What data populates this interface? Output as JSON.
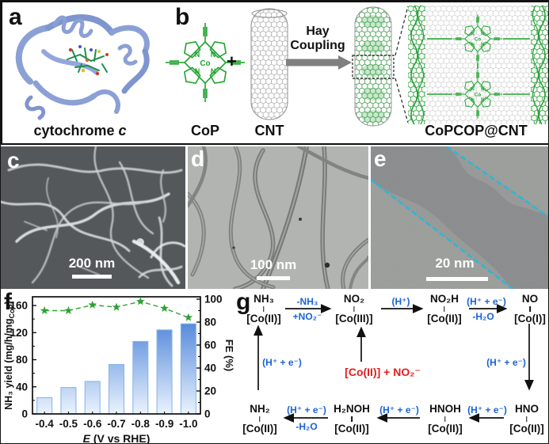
{
  "figure": {
    "panel_a": {
      "label": "a",
      "caption_main": "cytochrome ",
      "caption_italic": "c"
    },
    "panel_b": {
      "label": "b",
      "cop_caption": "CoP",
      "plus_sign": "+",
      "cnt_caption": "CNT",
      "arrow_text_line1": "Hay",
      "arrow_text_line2": "Coupling",
      "product_caption": "CoPCOP@CNT",
      "metal_symbol": "Co",
      "nitrogen_symbol": "N"
    },
    "panel_c": {
      "label": "c",
      "scale_bar_text": "200 nm"
    },
    "panel_d": {
      "label": "d",
      "scale_bar_text": "100 nm"
    },
    "panel_e": {
      "label": "e",
      "scale_bar_text": "20 nm"
    },
    "panel_f": {
      "label": "f"
    },
    "panel_g": {
      "label": "g"
    }
  },
  "chart_data": {
    "type": "bar",
    "categories": [
      "-0.4",
      "-0.5",
      "-0.6",
      "-0.7",
      "-0.8",
      "-0.9",
      "-1.0"
    ],
    "series": [
      {
        "name": "NH3 yield",
        "type": "bar",
        "axis": "left",
        "values": [
          24,
          39,
          48,
          73,
          107,
          124,
          133
        ]
      },
      {
        "name": "FE",
        "type": "line-star",
        "axis": "right",
        "style": "dashed",
        "values": [
          90,
          90,
          95,
          93,
          98,
          92,
          84
        ]
      }
    ],
    "left_axis": {
      "label_main": "NH₃ yield (mg/h/mg",
      "label_sub": "CoP",
      "label_end": ")",
      "ticks": [
        0,
        40,
        80,
        120,
        160
      ],
      "range": [
        0,
        173
      ]
    },
    "right_axis": {
      "label": "FE (%)",
      "ticks": [
        0,
        20,
        40,
        60,
        80,
        100
      ],
      "range": [
        0,
        102
      ]
    },
    "x_axis": {
      "label_italic": "E",
      "label_rest": " (V vs RHE)"
    },
    "grid": false,
    "colors": {
      "bar_top": "#2b6cd1",
      "bar_bottom": "#eaf3fd",
      "bar_edge": "#86b2e8",
      "star_line": "#2da233"
    }
  },
  "mechanism": {
    "top_nodes": [
      {
        "formula": "NH₃",
        "complex": "[Co(II)]"
      },
      {
        "formula": "NO₂",
        "complex": "[Co(III)]"
      },
      {
        "formula": "NO₂H",
        "complex": "[Co(II)]"
      },
      {
        "formula": "NO",
        "complex": "[Co(I)]"
      }
    ],
    "bottom_nodes": [
      {
        "formula": "NH₂",
        "complex": "[Co(II)]"
      },
      {
        "formula": "H₂NOH",
        "complex": "[Co(II)]"
      },
      {
        "formula": "HNOH",
        "complex": "[Co(II)]"
      },
      {
        "formula": "HNO",
        "complex": "[Co(II)]"
      }
    ],
    "labels": {
      "t1_above": "-NH₃",
      "t1_below": "+NO₂⁻",
      "t2_above": "(H⁺)",
      "t3_above": "(H⁺ + e⁻)",
      "t3_below": "-H₂O",
      "left_vertical": "(H⁺ + e⁻)",
      "right_vertical": "(H⁺ + e⁻)",
      "b1": "(H⁺ + e⁻)",
      "b2": "(H⁺ + e⁻)",
      "b3_above": "(H⁺ + e⁻)",
      "b3_below": "-H₂O",
      "center_red": "[Co(II)] + NO₂⁻"
    }
  },
  "colors": {
    "scheme_green": "#1fa32d",
    "mechanism_blue": "#1a63d6",
    "mechanism_red": "#e31e1e",
    "tem_dash_cyan": "#29b9d6",
    "ribbon_blue": "#8ba0d5"
  }
}
